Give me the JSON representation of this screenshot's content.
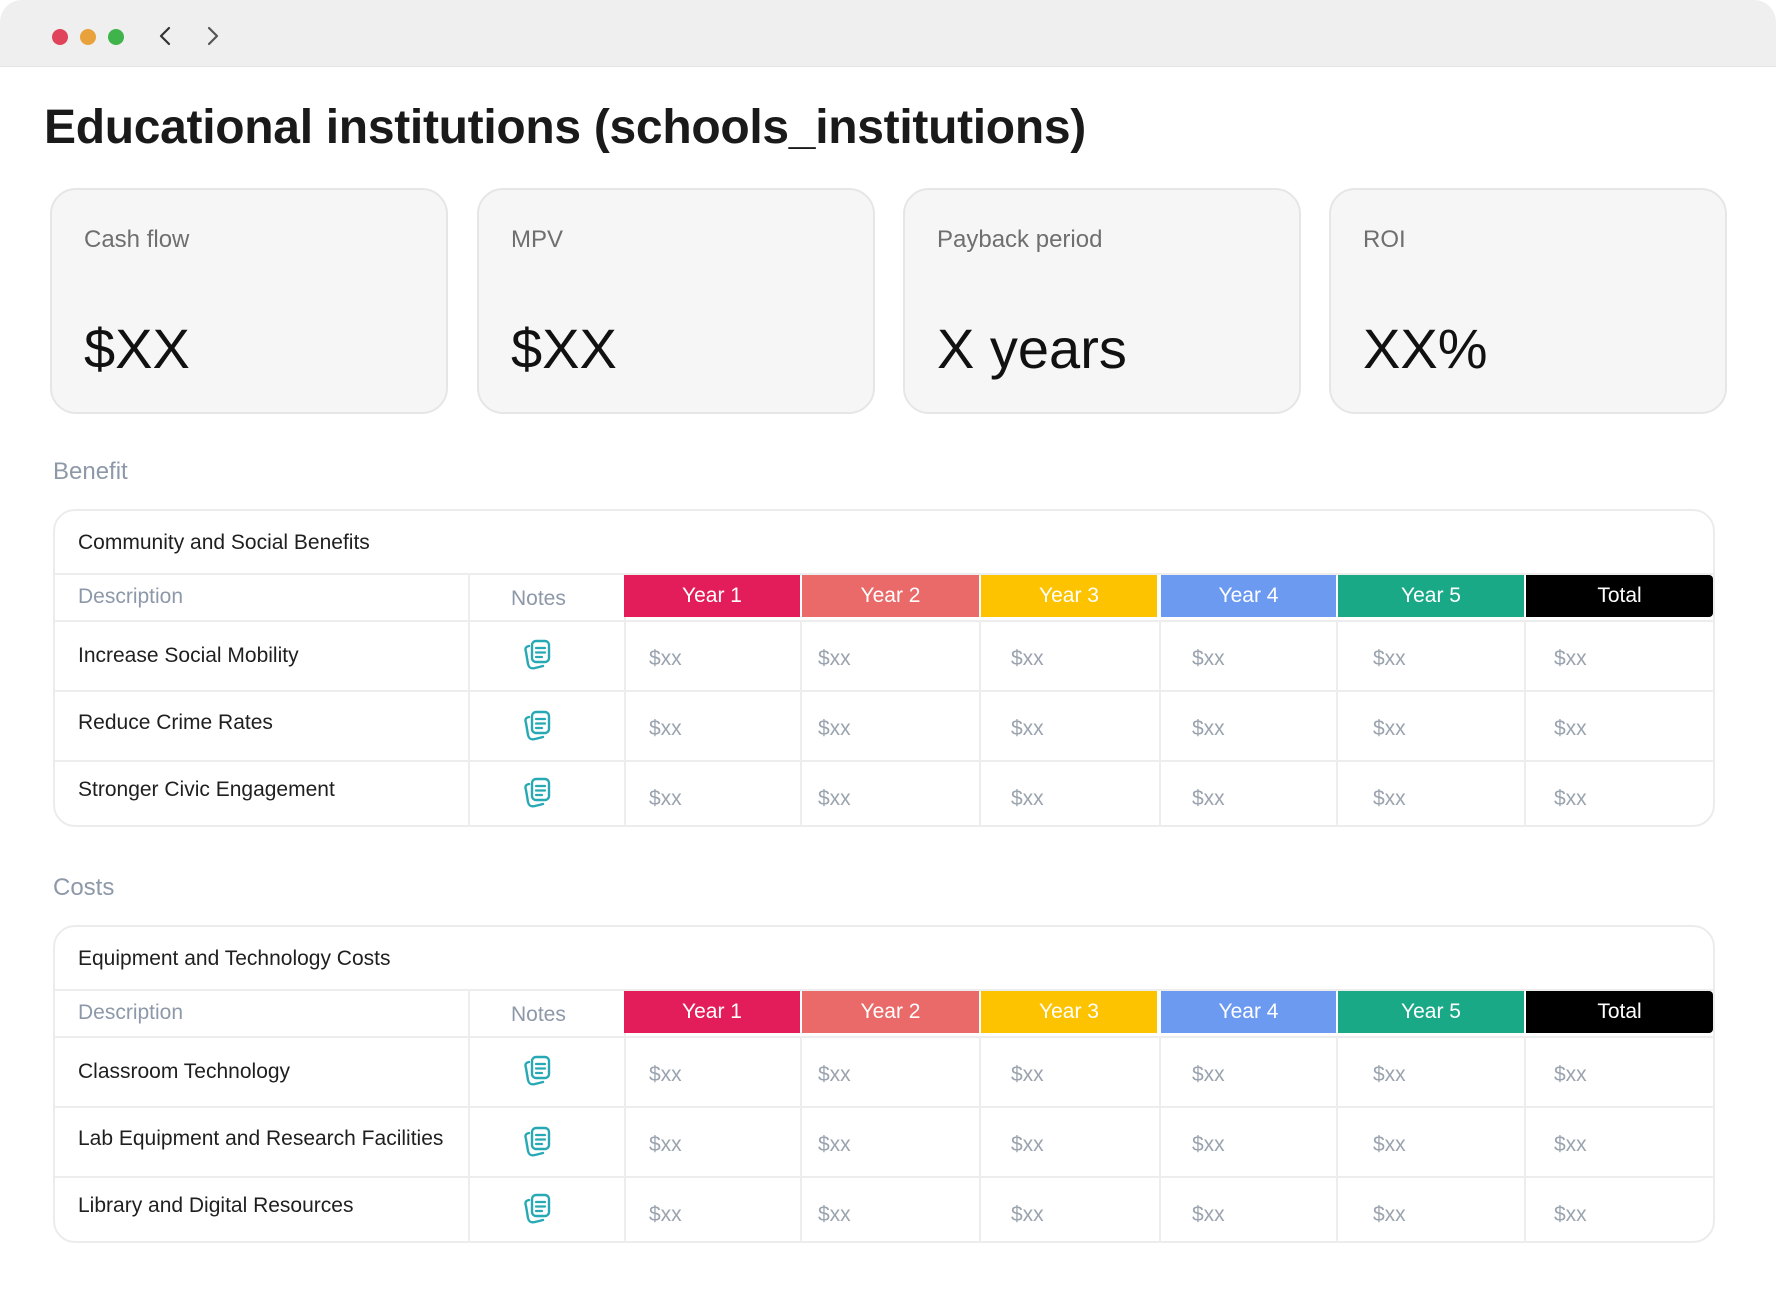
{
  "page": {
    "title": "Educational institutions (schools_institutions)"
  },
  "kpis": [
    {
      "label": "Cash flow",
      "value": "$XX"
    },
    {
      "label": "MPV",
      "value": "$XX"
    },
    {
      "label": "Payback period",
      "value": "X years"
    },
    {
      "label": "ROI",
      "value": "XX%"
    }
  ],
  "colors": {
    "year1": "#e31c5a",
    "year2": "#ea6a6a",
    "year3": "#fdc300",
    "year4": "#6b9af0",
    "year5": "#1aa987",
    "total": "#000000",
    "note_icon": "#26a9b5"
  },
  "sections": {
    "benefit": {
      "label": "Benefit",
      "panel_title": "Community and Social Benefits",
      "headers": {
        "description": "Description",
        "notes": "Notes",
        "year1": "Year 1",
        "year2": "Year 2",
        "year3": "Year 3",
        "year4": "Year 4",
        "year5": "Year 5",
        "total": "Total"
      },
      "rows": [
        {
          "description": "Increase Social Mobility",
          "notes_icon": "notes-icon",
          "values": [
            "$xx",
            "$xx",
            "$xx",
            "$xx",
            "$xx",
            "$xx"
          ]
        },
        {
          "description": "Reduce Crime Rates",
          "notes_icon": "notes-icon",
          "values": [
            "$xx",
            "$xx",
            "$xx",
            "$xx",
            "$xx",
            "$xx"
          ]
        },
        {
          "description": "Stronger Civic Engagement",
          "notes_icon": "notes-icon",
          "values": [
            "$xx",
            "$xx",
            "$xx",
            "$xx",
            "$xx",
            "$xx"
          ]
        }
      ]
    },
    "costs": {
      "label": "Costs",
      "panel_title": "Equipment and Technology Costs",
      "headers": {
        "description": "Description",
        "notes": "Notes",
        "year1": "Year 1",
        "year2": "Year 2",
        "year3": "Year 3",
        "year4": "Year 4",
        "year5": "Year 5",
        "total": "Total"
      },
      "rows": [
        {
          "description": "Classroom Technology",
          "notes_icon": "notes-icon",
          "values": [
            "$xx",
            "$xx",
            "$xx",
            "$xx",
            "$xx",
            "$xx"
          ]
        },
        {
          "description": "Lab Equipment and Research Facilities",
          "notes_icon": "notes-icon",
          "values": [
            "$xx",
            "$xx",
            "$xx",
            "$xx",
            "$xx",
            "$xx"
          ]
        },
        {
          "description": "Library and Digital Resources",
          "notes_icon": "notes-icon",
          "values": [
            "$xx",
            "$xx",
            "$xx",
            "$xx",
            "$xx",
            "$xx"
          ]
        }
      ]
    }
  }
}
